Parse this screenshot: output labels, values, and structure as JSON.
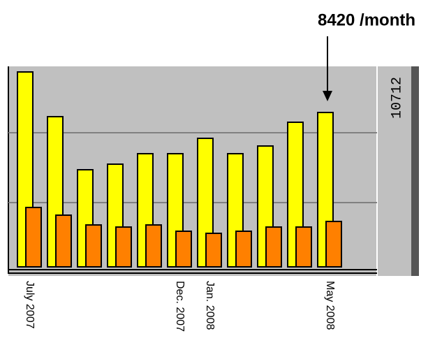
{
  "chart_data": {
    "type": "bar",
    "annotation": "8420 /month",
    "ymax_label": 10712,
    "categories": [
      "July 2007",
      null,
      null,
      null,
      null,
      "Dec. 2007",
      "Jan. 2008",
      null,
      null,
      null,
      "May 2008"
    ],
    "series": [
      {
        "color": "#ffff00",
        "values": [
          10712,
          8255,
          5337,
          5644,
          6220,
          6220,
          7064,
          6220,
          6642,
          7948,
          8485
        ]
      },
      {
        "color": "#ff8000",
        "values": [
          3264,
          2841,
          2304,
          2188,
          2304,
          1958,
          1843,
          1958,
          2188,
          2188,
          2496
        ]
      }
    ],
    "ylim": [
      0,
      10712
    ],
    "yticks": [
      3532,
      7372
    ],
    "grid": true,
    "annotation_index": 10
  }
}
